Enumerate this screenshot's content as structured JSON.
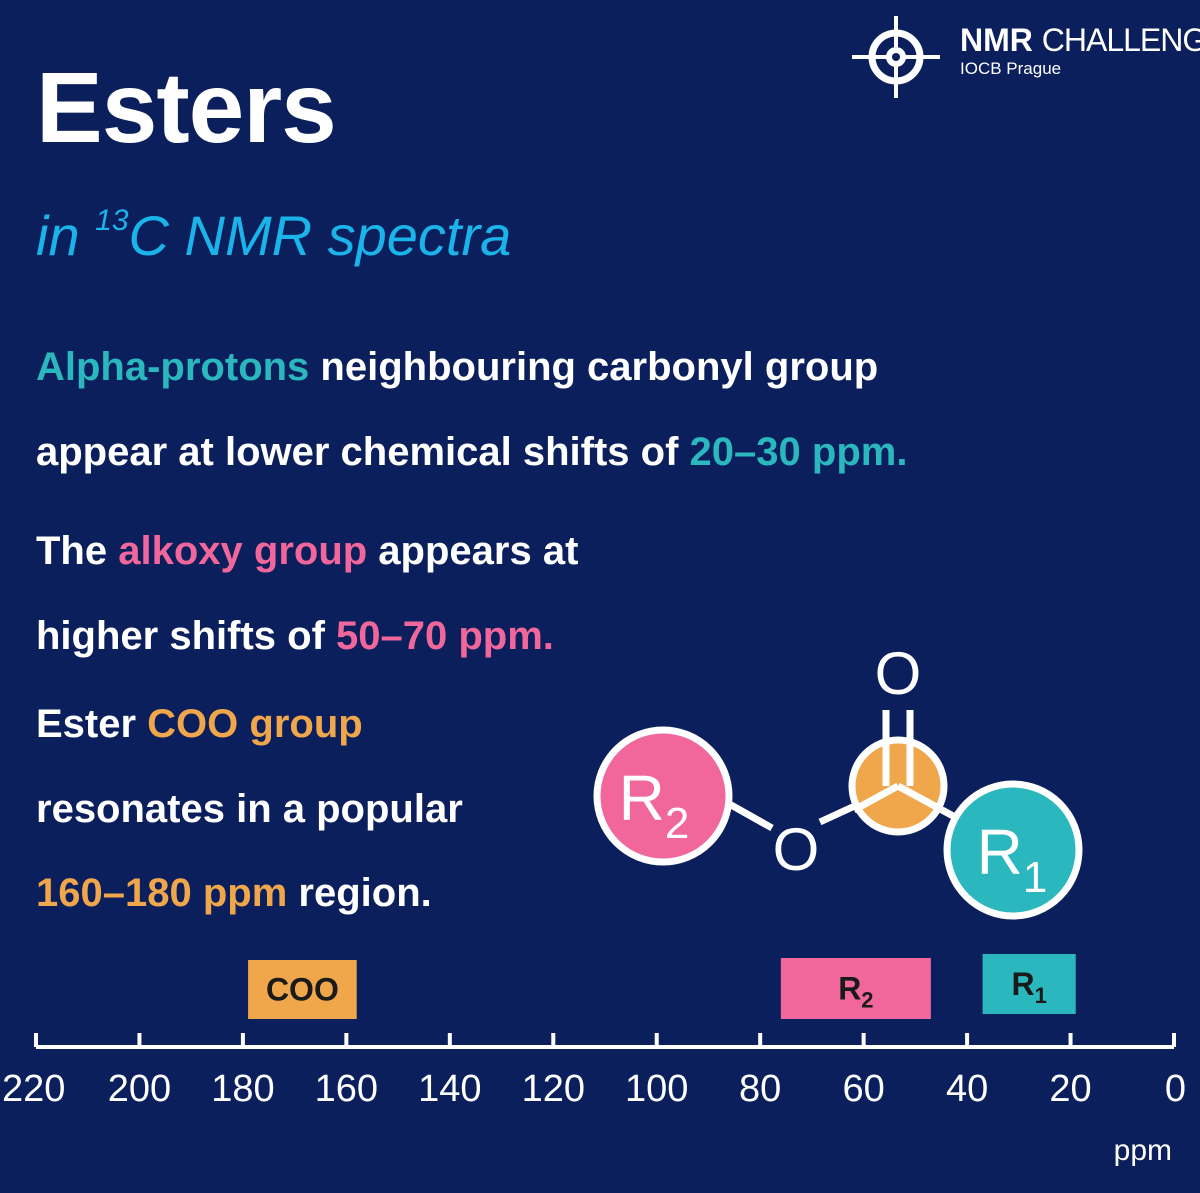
{
  "brand": {
    "logo_main": "NMR",
    "logo_main2": "CHALLENGE",
    "logo_sub": "IOCB Prague",
    "logo_icon": "crosshair-icon"
  },
  "title": "Esters",
  "subtitle": {
    "prefix": "in ",
    "superscript": "13",
    "rest": "C NMR spectra"
  },
  "paragraphs": {
    "p1_l1_highlight": "Alpha-protons",
    "p1_l1_rest": " neighbouring carbonyl group",
    "p1_l2_text": "appear at lower chemical shifts of ",
    "p1_l2_highlight": "20–30 ppm.",
    "p2_l1_pre": "The ",
    "p2_l1_highlight": "alkoxy group",
    "p2_l1_rest": " appears at",
    "p2_l2_text": "higher shifts of ",
    "p2_l2_highlight": "50–70 ppm.",
    "p3_l1_pre": "Ester ",
    "p3_l1_highlight": "COO group",
    "p3_l2_text": "resonates in a popular",
    "p3_l3_highlight": "160–180 ppm",
    "p3_l3_rest": " region."
  },
  "molecule": {
    "carbonyl_oxygen": "O",
    "ester_oxygen": "O",
    "r2_label": "R",
    "r2_sub": "2",
    "r1_label": "R",
    "r1_sub": "1"
  },
  "colors": {
    "background": "#0b1f5c",
    "teal": "#2bb7be",
    "pink": "#f2679b",
    "orange": "#f0a64a",
    "subtitle": "#1ab3ea"
  },
  "chart_data": {
    "type": "range-bars",
    "x_unit": "ppm",
    "x_reversed": true,
    "xlim": [
      220,
      0
    ],
    "ticks": [
      220,
      200,
      180,
      160,
      140,
      120,
      100,
      80,
      60,
      40,
      20,
      0
    ],
    "ranges": [
      {
        "label": "COO",
        "sub": "",
        "from": 179,
        "to": 158,
        "color": "#f0a64a"
      },
      {
        "label": "R",
        "sub": "2",
        "from": 76,
        "to": 47,
        "color": "#f2679b"
      },
      {
        "label": "R",
        "sub": "1",
        "from": 37,
        "to": 19,
        "color": "#2bb7be"
      }
    ]
  }
}
